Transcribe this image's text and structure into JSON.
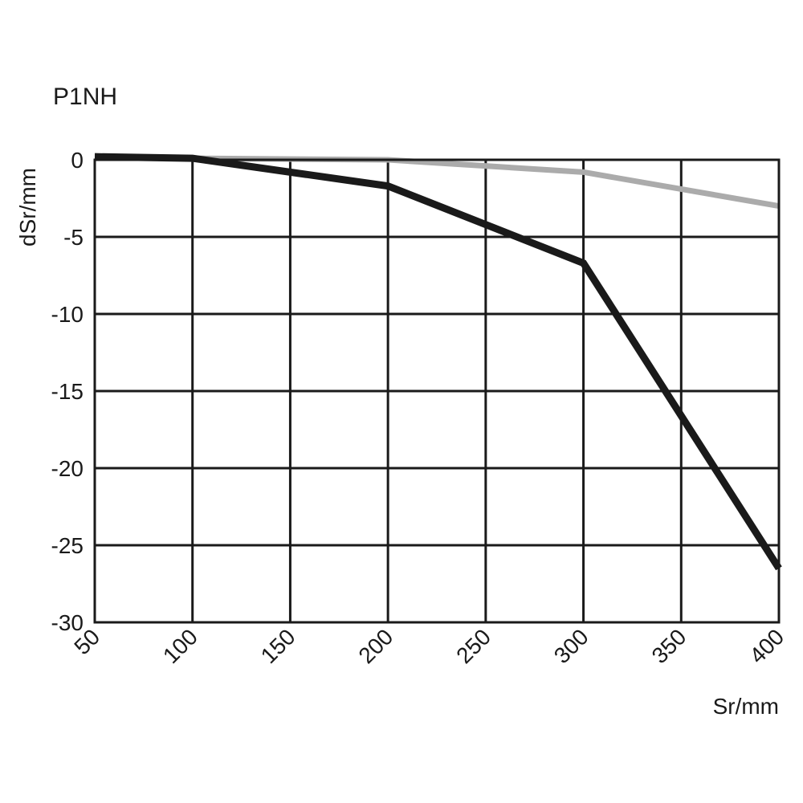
{
  "chart_data": {
    "type": "line",
    "title": "P1NH",
    "xlabel": "Sr/mm",
    "ylabel": "dSr/mm",
    "xlim": [
      50,
      400
    ],
    "ylim": [
      -30,
      0
    ],
    "x_ticks": [
      "50",
      "100",
      "150",
      "200",
      "250",
      "300",
      "350",
      "400"
    ],
    "x_tick_values": [
      50,
      100,
      150,
      200,
      250,
      300,
      350,
      400
    ],
    "y_ticks": [
      "0",
      "-5",
      "-10",
      "-15",
      "-20",
      "-25",
      "-30"
    ],
    "y_tick_values": [
      0,
      -5,
      -10,
      -15,
      -20,
      -25,
      -30
    ],
    "grid": true,
    "series": [
      {
        "color": "#ababab",
        "points": [
          [
            50,
            0.2
          ],
          [
            100,
            0.1
          ],
          [
            200,
            0.0
          ],
          [
            300,
            -0.8
          ],
          [
            400,
            -3.0
          ]
        ]
      },
      {
        "color": "#1a1a1a",
        "points": [
          [
            50,
            0.2
          ],
          [
            100,
            0.1
          ],
          [
            200,
            -1.7
          ],
          [
            300,
            -6.7
          ],
          [
            400,
            -26.5
          ]
        ]
      }
    ]
  }
}
